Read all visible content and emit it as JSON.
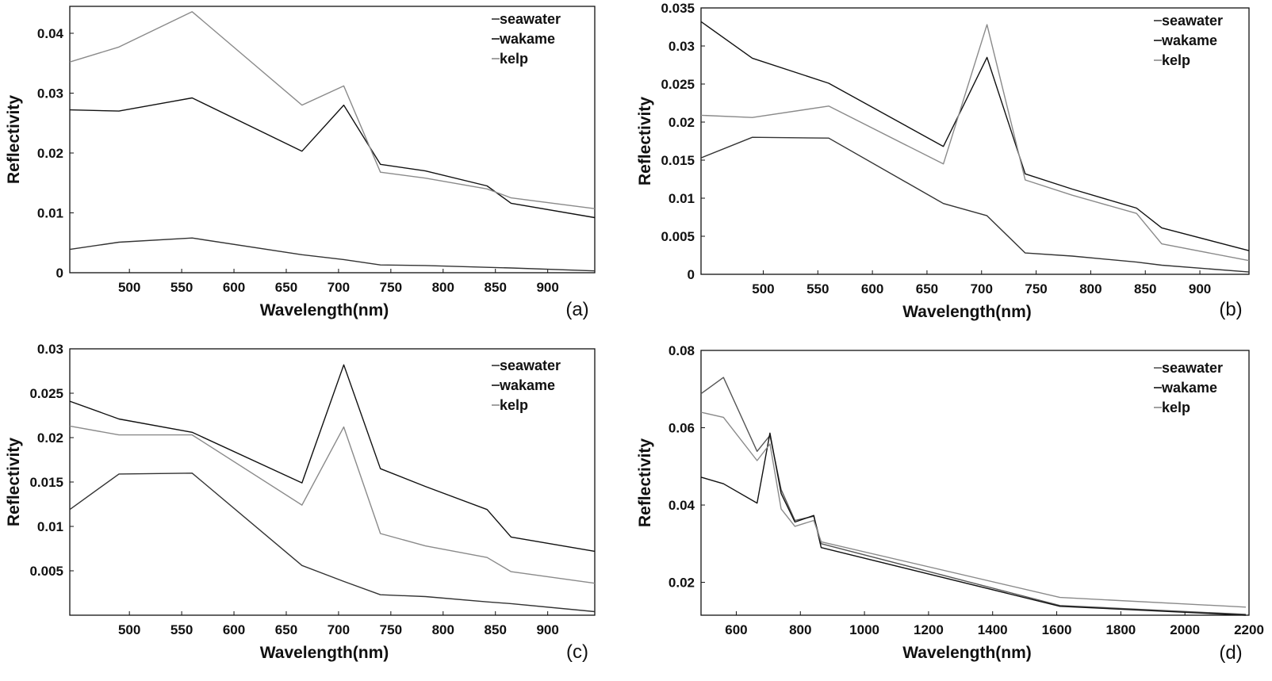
{
  "chart_data": [
    {
      "type": "line",
      "panel_label": "(a)",
      "xlabel": "Wavelength(nm)",
      "ylabel": "Reflectivity",
      "xlim": [
        443,
        945
      ],
      "ylim": [
        0,
        0.0445
      ],
      "xticks": [
        500,
        550,
        600,
        650,
        700,
        750,
        800,
        850,
        900
      ],
      "xtick_labels": [
        "500",
        "550",
        "600",
        "650",
        "700",
        "750",
        "800",
        "850",
        "900"
      ],
      "yticks": [
        0,
        0.01,
        0.02,
        0.03,
        0.04
      ],
      "ytick_labels": [
        "0",
        "0.01",
        "0.02",
        "0.03",
        "0.04"
      ],
      "legend_position": "top-right",
      "grid": false,
      "series": [
        {
          "name": "seawater",
          "color": "#333333",
          "x": [
            443,
            490,
            560,
            665,
            705,
            740,
            783,
            842,
            865,
            945
          ],
          "y": [
            0.0039,
            0.0051,
            0.0058,
            0.003,
            0.0022,
            0.0013,
            0.0012,
            0.0009,
            0.0008,
            0.0003
          ]
        },
        {
          "name": "wakame",
          "color": "#111111",
          "x": [
            443,
            490,
            560,
            665,
            705,
            740,
            783,
            842,
            865,
            945
          ],
          "y": [
            0.0272,
            0.027,
            0.0292,
            0.0203,
            0.028,
            0.0181,
            0.017,
            0.0145,
            0.0116,
            0.0092
          ]
        },
        {
          "name": "kelp",
          "color": "#8a8a8a",
          "x": [
            443,
            490,
            560,
            665,
            705,
            740,
            783,
            842,
            865,
            945
          ],
          "y": [
            0.0352,
            0.0377,
            0.0436,
            0.028,
            0.0312,
            0.0168,
            0.0158,
            0.014,
            0.0125,
            0.0107
          ]
        }
      ]
    },
    {
      "type": "line",
      "panel_label": "(b)",
      "xlabel": "Wavelength(nm)",
      "ylabel": "Reflectivity",
      "xlim": [
        443,
        945
      ],
      "ylim": [
        0,
        0.035
      ],
      "xticks": [
        500,
        550,
        600,
        650,
        700,
        750,
        800,
        850,
        900
      ],
      "xtick_labels": [
        "500",
        "550",
        "600",
        "650",
        "700",
        "750",
        "800",
        "850",
        "900"
      ],
      "yticks": [
        0,
        0.005,
        0.01,
        0.015,
        0.02,
        0.025,
        0.03,
        0.035
      ],
      "ytick_labels": [
        "0",
        "0.005",
        "0.01",
        "0.015",
        "0.02",
        "0.025",
        "0.03",
        "0.035"
      ],
      "legend_position": "top-right",
      "grid": false,
      "series": [
        {
          "name": "seawater",
          "color": "#333333",
          "x": [
            443,
            490,
            560,
            665,
            705,
            740,
            783,
            842,
            865,
            945
          ],
          "y": [
            0.0153,
            0.018,
            0.0179,
            0.0093,
            0.0077,
            0.0028,
            0.0024,
            0.0016,
            0.0012,
            0.0003
          ]
        },
        {
          "name": "wakame",
          "color": "#111111",
          "x": [
            443,
            490,
            560,
            665,
            705,
            740,
            783,
            842,
            865,
            945
          ],
          "y": [
            0.0332,
            0.0284,
            0.0251,
            0.0168,
            0.0285,
            0.0132,
            0.0112,
            0.0087,
            0.0061,
            0.0031
          ]
        },
        {
          "name": "kelp",
          "color": "#8a8a8a",
          "x": [
            443,
            490,
            560,
            665,
            705,
            740,
            783,
            842,
            865,
            945
          ],
          "y": [
            0.0209,
            0.0206,
            0.0221,
            0.0145,
            0.0328,
            0.0124,
            0.0104,
            0.008,
            0.004,
            0.0018
          ]
        }
      ]
    },
    {
      "type": "line",
      "panel_label": "(c)",
      "xlabel": "Wavelength(nm)",
      "ylabel": "Reflectivity",
      "xlim": [
        443,
        945
      ],
      "ylim": [
        0,
        0.03
      ],
      "xticks": [
        500,
        550,
        600,
        650,
        700,
        750,
        800,
        850,
        900
      ],
      "xtick_labels": [
        "500",
        "550",
        "600",
        "650",
        "700",
        "750",
        "800",
        "850",
        "900"
      ],
      "yticks": [
        0.005,
        0.01,
        0.015,
        0.02,
        0.025,
        0.03
      ],
      "ytick_labels": [
        "0.005",
        "0.01",
        "0.015",
        "0.02",
        "0.025",
        "0.03"
      ],
      "legend_position": "top-right",
      "grid": false,
      "series": [
        {
          "name": "seawater",
          "color": "#333333",
          "x": [
            443,
            490,
            560,
            665,
            705,
            740,
            783,
            842,
            865,
            945
          ],
          "y": [
            0.0119,
            0.0159,
            0.016,
            0.0056,
            0.0038,
            0.0023,
            0.0021,
            0.0015,
            0.0013,
            0.0004
          ]
        },
        {
          "name": "wakame",
          "color": "#111111",
          "x": [
            443,
            490,
            560,
            665,
            705,
            740,
            783,
            842,
            865,
            945
          ],
          "y": [
            0.0241,
            0.0221,
            0.0206,
            0.0149,
            0.0282,
            0.0165,
            0.0145,
            0.0119,
            0.0088,
            0.0072
          ]
        },
        {
          "name": "kelp",
          "color": "#8a8a8a",
          "x": [
            443,
            490,
            560,
            665,
            705,
            740,
            783,
            842,
            865,
            945
          ],
          "y": [
            0.0213,
            0.0203,
            0.0203,
            0.0124,
            0.0212,
            0.0092,
            0.0078,
            0.0065,
            0.0049,
            0.0036
          ]
        }
      ]
    },
    {
      "type": "line",
      "panel_label": "(d)",
      "xlabel": "Wavelength(nm)",
      "ylabel": "Reflectivity",
      "xlim": [
        490,
        2200
      ],
      "ylim": [
        0.0115,
        0.08
      ],
      "xticks": [
        600,
        800,
        1000,
        1200,
        1400,
        1600,
        1800,
        2000,
        2200
      ],
      "xtick_labels": [
        "600",
        "800",
        "1000",
        "1200",
        "1400",
        "1600",
        "1800",
        "2000",
        "2200"
      ],
      "yticks": [
        0.02,
        0.04,
        0.06,
        0.08
      ],
      "ytick_labels": [
        "0.02",
        "0.04",
        "0.06",
        "0.08"
      ],
      "legend_position": "top-right",
      "grid": false,
      "series": [
        {
          "name": "seawater",
          "color": "#555555",
          "x": [
            490,
            560,
            665,
            705,
            740,
            783,
            842,
            865,
            1610,
            2190
          ],
          "y": [
            0.0688,
            0.073,
            0.0539,
            0.058,
            0.044,
            0.036,
            0.0371,
            0.03,
            0.014,
            0.0117
          ]
        },
        {
          "name": "wakame",
          "color": "#111111",
          "x": [
            490,
            560,
            665,
            705,
            740,
            783,
            842,
            865,
            1610,
            2190
          ],
          "y": [
            0.0472,
            0.0455,
            0.0405,
            0.0586,
            0.043,
            0.0356,
            0.0373,
            0.029,
            0.0138,
            0.0115
          ]
        },
        {
          "name": "kelp",
          "color": "#8a8a8a",
          "x": [
            490,
            560,
            665,
            705,
            740,
            783,
            842,
            865,
            1610,
            2190
          ],
          "y": [
            0.064,
            0.0627,
            0.0515,
            0.0558,
            0.039,
            0.0345,
            0.036,
            0.0305,
            0.0161,
            0.0136
          ]
        }
      ]
    }
  ]
}
